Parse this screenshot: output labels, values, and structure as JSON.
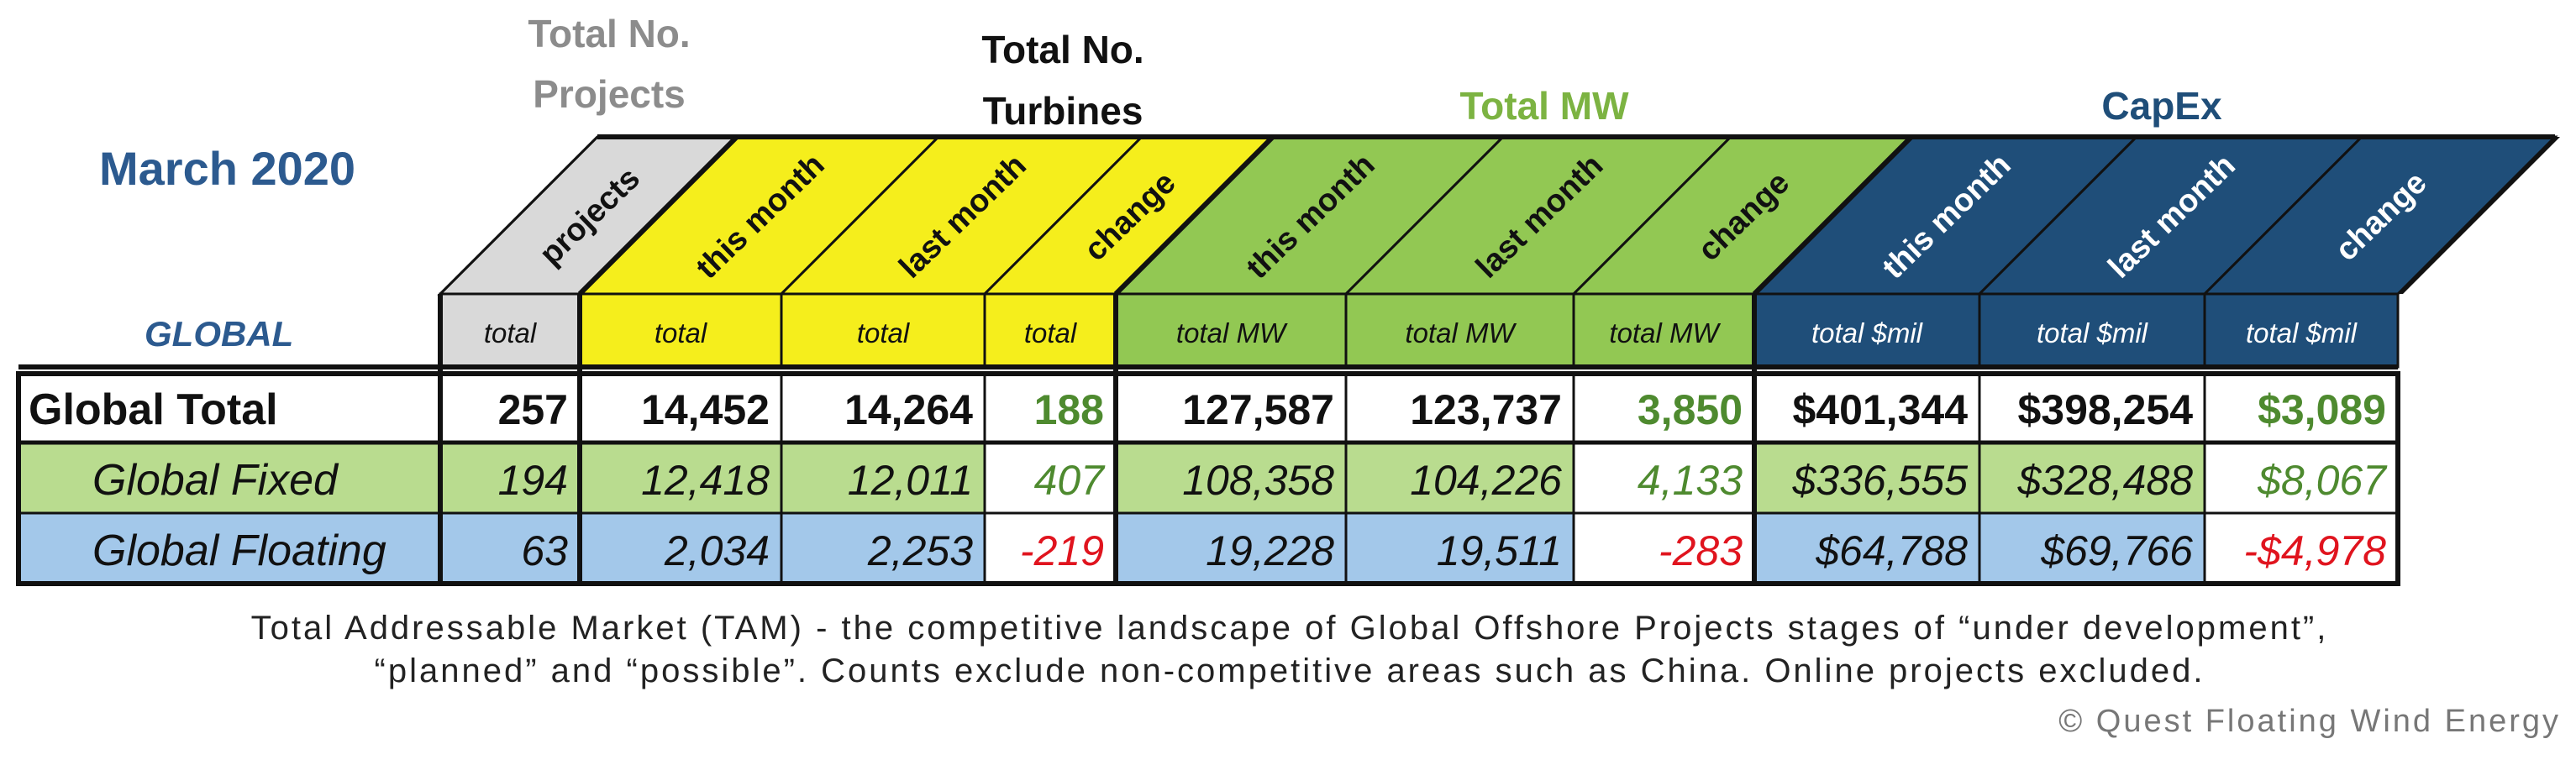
{
  "heading": {
    "date": "March 2020",
    "region": "GLOBAL"
  },
  "colors": {
    "gray": "#d9d9d9",
    "yellow": "#f5ee1c",
    "green": "#92c853",
    "navy": "#1f4e79",
    "light_green": "#b9dc8f",
    "light_blue": "#a3c8ea",
    "positive": "#4e8a2f",
    "negative": "#e0141e",
    "heading_blue": "#2c5a8f"
  },
  "chart_data": {
    "type": "table",
    "groups": [
      {
        "label_lines": [
          "Total No.",
          "Projects"
        ],
        "color": "#8c8c8c"
      },
      {
        "label_lines": [
          "Total No.",
          "Turbines"
        ],
        "color": "#111111"
      },
      {
        "label_lines": [
          "Total MW"
        ],
        "color": "#7cb342"
      },
      {
        "label_lines": [
          "CapEx"
        ],
        "color": "#1f4e79"
      }
    ],
    "columns": [
      {
        "header": "projects",
        "unit": "total"
      },
      {
        "header": "this month",
        "unit": "total"
      },
      {
        "header": "last month",
        "unit": "total"
      },
      {
        "header": "change",
        "unit": "total"
      },
      {
        "header": "this month",
        "unit": "total MW"
      },
      {
        "header": "last month",
        "unit": "total MW"
      },
      {
        "header": "change",
        "unit": "total MW"
      },
      {
        "header": "this month",
        "unit": "total $mil"
      },
      {
        "header": "last month",
        "unit": "total $mil"
      },
      {
        "header": "change",
        "unit": "total $mil"
      }
    ],
    "rows": [
      {
        "label": "Global Total",
        "values": [
          "257",
          "14,452",
          "14,264",
          "188",
          "127,587",
          "123,737",
          "3,850",
          "$401,344",
          "$398,254",
          "$3,089"
        ]
      },
      {
        "label": "Global Fixed",
        "values": [
          "194",
          "12,418",
          "12,011",
          "407",
          "108,358",
          "104,226",
          "4,133",
          "$336,555",
          "$328,488",
          "$8,067"
        ]
      },
      {
        "label": "Global Floating",
        "values": [
          "63",
          "2,034",
          "2,253",
          "-219",
          "19,228",
          "19,511",
          "-283",
          "$64,788",
          "$69,766",
          "-$4,978"
        ]
      }
    ]
  },
  "footnote": {
    "line1": "Total Addressable Market (TAM) - the competitive landscape of Global Offshore Projects stages  of “under development”,",
    "line2": "“planned” and “possible”. Counts exclude non-competitive areas such as China. Online projects excluded."
  },
  "copyright": "© Quest Floating Wind Energy"
}
